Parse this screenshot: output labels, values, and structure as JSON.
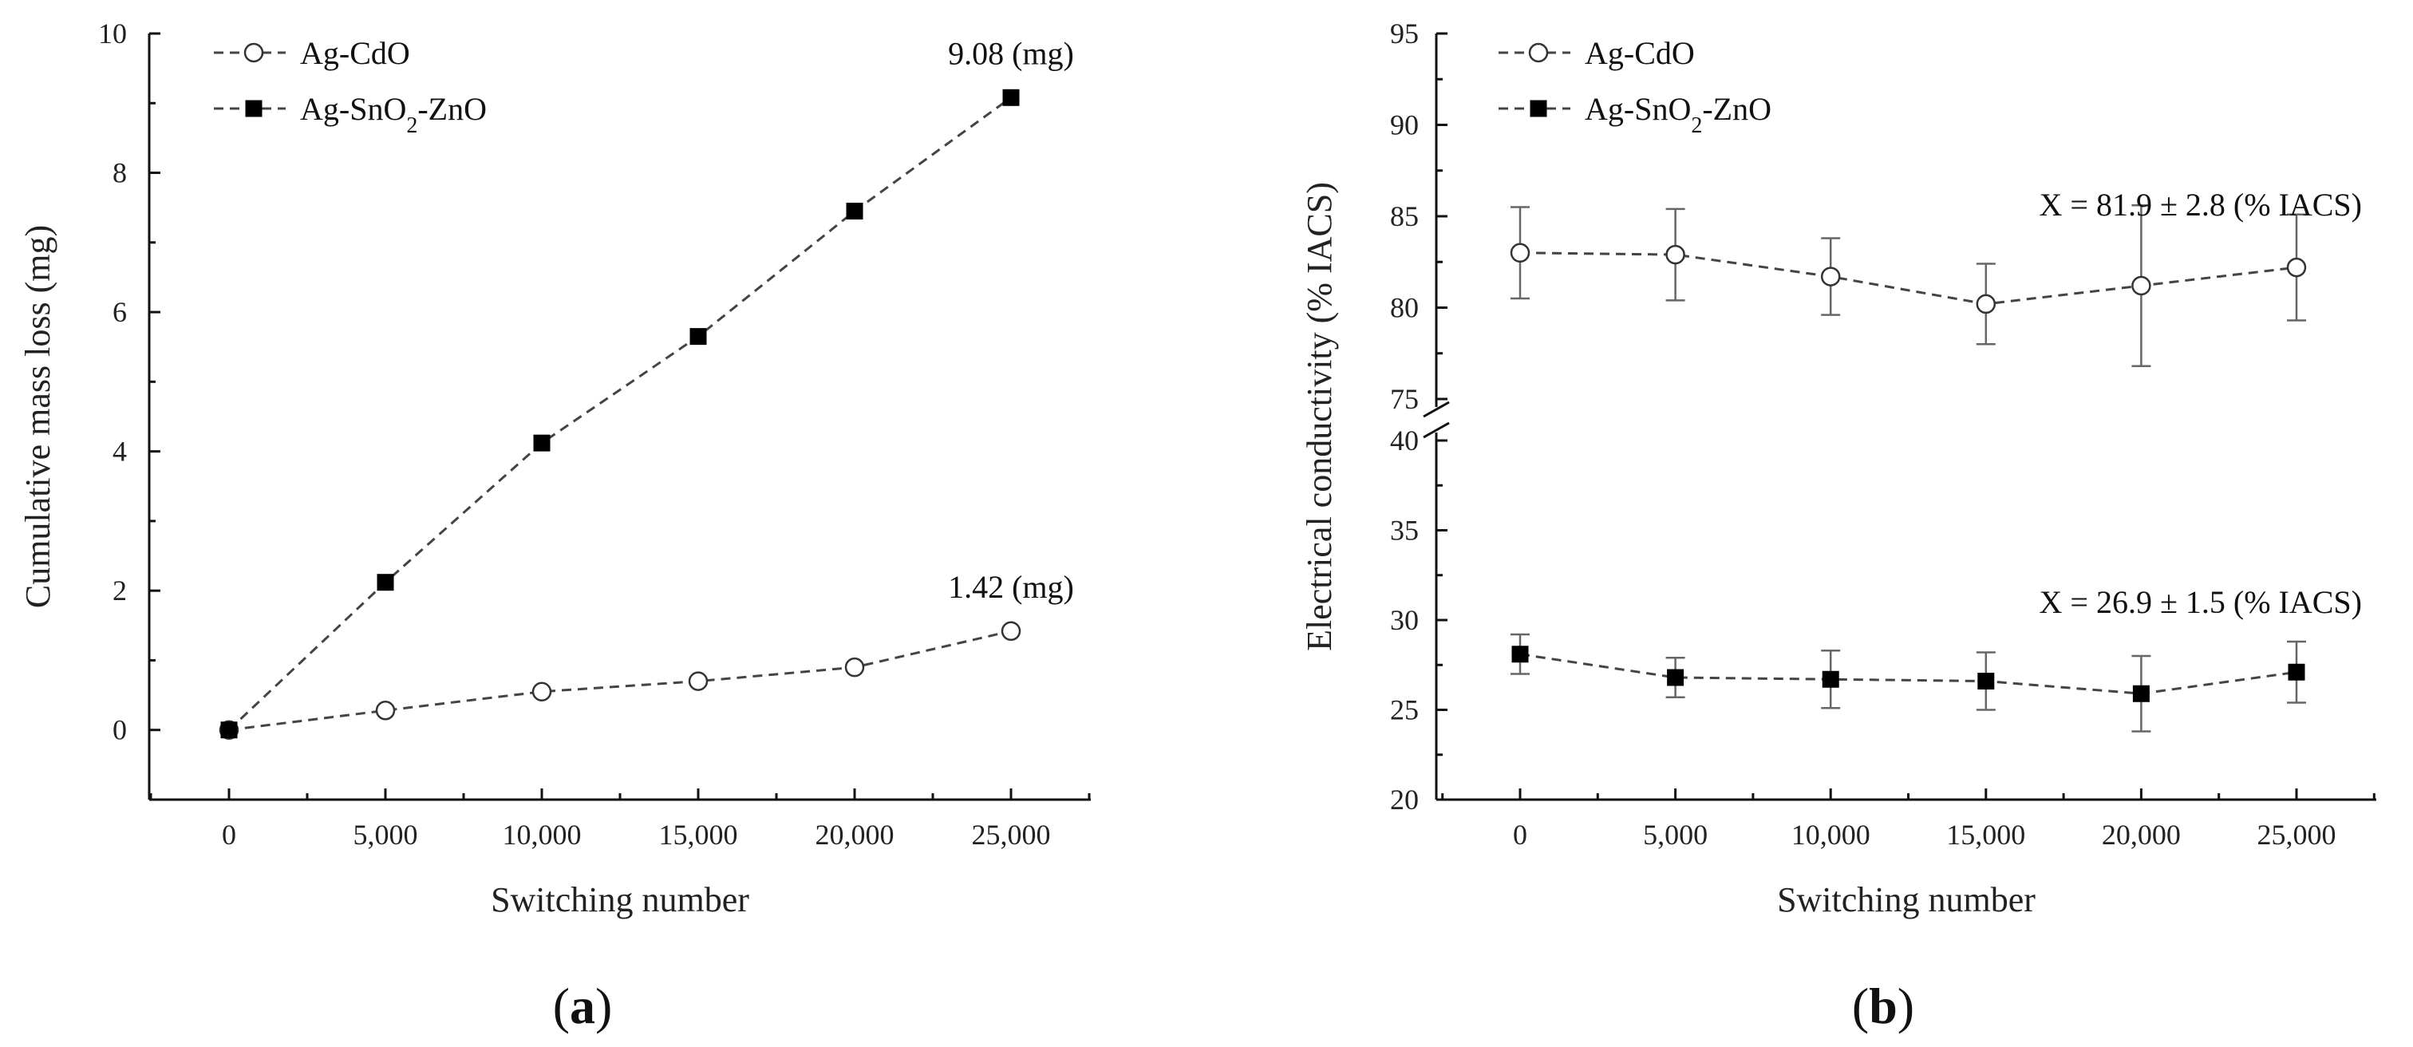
{
  "chart_data": [
    {
      "type": "line",
      "panel_label": "a",
      "title": "",
      "xlabel": "Switching number",
      "ylabel": "Cumulative mass loss (mg)",
      "x": [
        0,
        5000,
        10000,
        15000,
        20000,
        25000
      ],
      "x_tick_labels": [
        "0",
        "5,000",
        "10,000",
        "15,000",
        "20,000",
        "25,000"
      ],
      "xlim": [
        -2500,
        27800
      ],
      "ylim": [
        -1,
        10
      ],
      "y_ticks": [
        0,
        2,
        4,
        6,
        8,
        10
      ],
      "y_tick_labels": [
        "0",
        "2",
        "4",
        "6",
        "8",
        "10"
      ],
      "legend_position": "top-left",
      "series": [
        {
          "name": "Ag-CdO",
          "marker": "open-circle",
          "values": [
            0,
            0.28,
            0.55,
            0.7,
            0.9,
            1.42
          ]
        },
        {
          "name": "Ag-SnO2-ZnO",
          "name_base": "Ag-SnO",
          "name_sub": "2",
          "name_tail": "-ZnO",
          "marker": "filled-square",
          "values": [
            0,
            2.12,
            4.12,
            5.65,
            7.45,
            9.08
          ]
        }
      ],
      "annotations": [
        {
          "text": "9.08 (mg)",
          "series": 1,
          "index": 5
        },
        {
          "text": "1.42 (mg)",
          "series": 0,
          "index": 5
        }
      ]
    },
    {
      "type": "line",
      "panel_label": "b",
      "title": "",
      "xlabel": "Switching number",
      "ylabel": "Electrical conductivity (% IACS)",
      "x": [
        0,
        5000,
        10000,
        15000,
        20000,
        25000
      ],
      "x_tick_labels": [
        "0",
        "5,000",
        "10,000",
        "15,000",
        "20,000",
        "25,000"
      ],
      "xlim": [
        -3000,
        27500
      ],
      "y_axis_break": true,
      "ylim_lower": [
        20,
        40
      ],
      "ylim_upper": [
        75,
        95
      ],
      "y_ticks": [
        20,
        25,
        30,
        35,
        40,
        75,
        80,
        85,
        90,
        95
      ],
      "y_tick_labels": [
        "20",
        "25",
        "30",
        "35",
        "40",
        "75",
        "80",
        "85",
        "90",
        "95"
      ],
      "legend_position": "top-left",
      "series": [
        {
          "name": "Ag-CdO",
          "marker": "open-circle",
          "values": [
            83.0,
            82.9,
            81.7,
            80.2,
            81.2,
            82.2
          ],
          "errors": [
            2.5,
            2.5,
            2.1,
            2.2,
            4.4,
            2.9
          ]
        },
        {
          "name": "Ag-SnO2-ZnO",
          "name_base": "Ag-SnO",
          "name_sub": "2",
          "name_tail": "-ZnO",
          "marker": "filled-square",
          "values": [
            28.1,
            26.8,
            26.7,
            26.6,
            25.9,
            27.1
          ],
          "errors": [
            1.1,
            1.1,
            1.6,
            1.6,
            2.1,
            1.7
          ]
        }
      ],
      "annotations": [
        {
          "text": "X = 81.9 ± 2.8 (% IACS)",
          "series": 0
        },
        {
          "text": "X = 26.9 ± 1.5 (% IACS)",
          "series": 1
        }
      ]
    }
  ]
}
